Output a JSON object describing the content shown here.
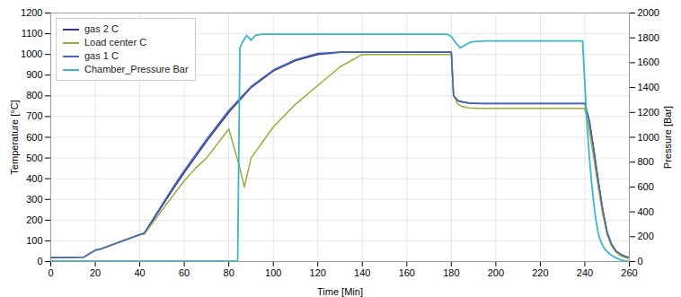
{
  "chart_data": {
    "type": "line",
    "xlabel": "Time [Min]",
    "ylabel": "Temperature [°C]",
    "y2label": "Pressure [Bar]",
    "xlim": [
      0,
      260
    ],
    "ylim": [
      0,
      1200
    ],
    "y2lim": [
      0,
      2000
    ],
    "xticks": [
      0,
      20,
      40,
      60,
      80,
      100,
      120,
      140,
      160,
      180,
      200,
      220,
      240,
      260
    ],
    "yticks": [
      0,
      100,
      200,
      300,
      400,
      500,
      600,
      700,
      800,
      900,
      1000,
      1100,
      1200
    ],
    "y2ticks": [
      0,
      200,
      400,
      600,
      800,
      1000,
      1200,
      1400,
      1600,
      1800,
      2000
    ],
    "grid": true,
    "legend": "upper left",
    "series": [
      {
        "name": "gas 2 C",
        "color": "#383880",
        "x": [
          0,
          5,
          15,
          20,
          22,
          40,
          42,
          55,
          60,
          70,
          80,
          90,
          100,
          110,
          120,
          130,
          140,
          150,
          160,
          170,
          180,
          181,
          183,
          185,
          188,
          192,
          200,
          210,
          220,
          230,
          240,
          242,
          244,
          246,
          248,
          250,
          252,
          254,
          256,
          258,
          260
        ],
        "values": [
          20,
          20,
          22,
          55,
          58,
          130,
          135,
          350,
          430,
          580,
          720,
          840,
          920,
          970,
          1000,
          1010,
          1010,
          1010,
          1010,
          1010,
          1010,
          800,
          775,
          770,
          765,
          762,
          762,
          762,
          762,
          762,
          762,
          680,
          540,
          390,
          250,
          140,
          80,
          50,
          35,
          25,
          18
        ]
      },
      {
        "name": "Load center C",
        "color": "#9aaa38",
        "x": [
          0,
          5,
          15,
          20,
          22,
          40,
          42,
          55,
          60,
          65,
          70,
          80,
          85,
          87,
          90,
          100,
          110,
          120,
          130,
          140,
          150,
          160,
          170,
          180,
          181,
          183,
          185,
          188,
          192,
          200,
          210,
          220,
          230,
          240,
          242,
          244,
          246,
          248,
          250,
          252,
          254,
          256,
          258,
          260
        ],
        "values": [
          20,
          20,
          22,
          55,
          58,
          130,
          132,
          320,
          390,
          450,
          500,
          640,
          450,
          360,
          500,
          650,
          760,
          850,
          940,
          1000,
          1000,
          1000,
          1000,
          1000,
          800,
          760,
          748,
          742,
          740,
          740,
          740,
          740,
          740,
          740,
          640,
          500,
          360,
          230,
          130,
          75,
          45,
          28,
          20,
          15
        ]
      },
      {
        "name": "gas 1 C",
        "color": "#4466bb",
        "x": [
          0,
          5,
          15,
          20,
          22,
          40,
          42,
          55,
          60,
          70,
          80,
          90,
          100,
          110,
          120,
          130,
          140,
          150,
          160,
          170,
          180,
          181,
          183,
          185,
          188,
          192,
          200,
          210,
          220,
          230,
          240,
          242,
          244,
          246,
          248,
          250,
          252,
          254,
          256,
          258,
          260
        ],
        "values": [
          20,
          20,
          22,
          55,
          60,
          130,
          138,
          360,
          440,
          590,
          730,
          845,
          925,
          975,
          1005,
          1012,
          1012,
          1012,
          1012,
          1012,
          1012,
          800,
          778,
          772,
          766,
          764,
          764,
          764,
          764,
          764,
          764,
          682,
          545,
          395,
          255,
          145,
          85,
          52,
          36,
          26,
          20
        ]
      },
      {
        "name": "Chamber_Pressure Bar",
        "color": "#38b8c8",
        "axis": "y2",
        "x": [
          0,
          5,
          18,
          20,
          84,
          85,
          86,
          88,
          90,
          92,
          95,
          100,
          110,
          120,
          130,
          140,
          150,
          160,
          170,
          178,
          180,
          182,
          184,
          186,
          188,
          190,
          195,
          200,
          210,
          220,
          230,
          239,
          240,
          241,
          242,
          243,
          244,
          245,
          246,
          247,
          248,
          249,
          250,
          251,
          252,
          254,
          256,
          258,
          260
        ],
        "values": [
          5,
          5,
          5,
          5,
          5,
          1720,
          1760,
          1820,
          1780,
          1820,
          1830,
          1830,
          1830,
          1830,
          1830,
          1830,
          1830,
          1830,
          1830,
          1830,
          1810,
          1760,
          1720,
          1740,
          1760,
          1770,
          1775,
          1775,
          1775,
          1775,
          1775,
          1775,
          1430,
          1100,
          850,
          640,
          470,
          330,
          230,
          170,
          130,
          100,
          80,
          65,
          50,
          30,
          15,
          5,
          0
        ]
      }
    ]
  }
}
